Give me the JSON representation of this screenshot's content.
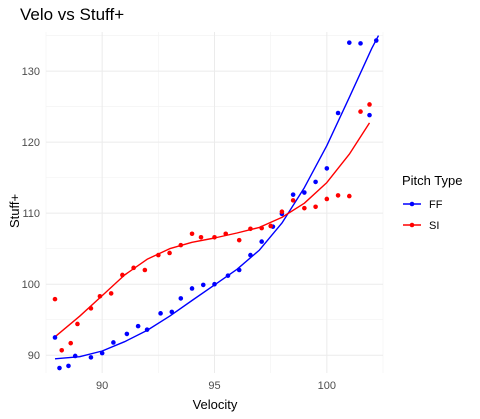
{
  "chart_data": {
    "type": "scatter",
    "title": "Velo vs Stuff+",
    "xlabel": "Velocity",
    "ylabel": "Stuff+",
    "xlim": [
      87.5,
      102.5
    ],
    "ylim": [
      87.5,
      135.5
    ],
    "x_ticks": [
      90,
      95,
      100
    ],
    "y_ticks": [
      90,
      100,
      110,
      120,
      130
    ],
    "grid": true,
    "legend": {
      "title": "Pitch Type",
      "placement": "right"
    },
    "series": [
      {
        "name": "FF",
        "color": "#0000ff",
        "points": [
          [
            87.9,
            92.5
          ],
          [
            88.1,
            88.2
          ],
          [
            88.5,
            88.5
          ],
          [
            88.8,
            89.9
          ],
          [
            89.5,
            89.7
          ],
          [
            90.0,
            90.3
          ],
          [
            90.5,
            91.8
          ],
          [
            91.1,
            93.0
          ],
          [
            91.6,
            94.1
          ],
          [
            92.0,
            93.6
          ],
          [
            92.6,
            95.9
          ],
          [
            93.1,
            96.1
          ],
          [
            93.5,
            98.0
          ],
          [
            94.0,
            99.4
          ],
          [
            94.5,
            99.9
          ],
          [
            95.0,
            100.0
          ],
          [
            95.6,
            101.2
          ],
          [
            96.1,
            102.0
          ],
          [
            96.6,
            104.1
          ],
          [
            97.1,
            106.0
          ],
          [
            97.6,
            108.1
          ],
          [
            98.0,
            109.9
          ],
          [
            98.5,
            112.6
          ],
          [
            99.0,
            112.9
          ],
          [
            99.5,
            114.4
          ],
          [
            100.0,
            116.3
          ],
          [
            100.5,
            124.1
          ],
          [
            101.0,
            134.0
          ],
          [
            101.5,
            133.9
          ],
          [
            101.9,
            123.8
          ],
          [
            102.2,
            134.3
          ]
        ],
        "trend": [
          [
            87.9,
            89.5
          ],
          [
            89.0,
            89.8
          ],
          [
            90.0,
            90.6
          ],
          [
            91.0,
            91.9
          ],
          [
            92.0,
            93.5
          ],
          [
            93.0,
            95.5
          ],
          [
            94.0,
            97.7
          ],
          [
            95.0,
            99.9
          ],
          [
            96.0,
            102.1
          ],
          [
            97.0,
            104.8
          ],
          [
            98.0,
            108.6
          ],
          [
            99.0,
            113.6
          ],
          [
            100.0,
            119.5
          ],
          [
            101.0,
            126.3
          ],
          [
            102.0,
            133.2
          ],
          [
            102.3,
            135.0
          ]
        ]
      },
      {
        "name": "SI",
        "color": "#ff0000",
        "points": [
          [
            87.9,
            97.9
          ],
          [
            88.2,
            90.7
          ],
          [
            88.6,
            91.7
          ],
          [
            88.9,
            94.4
          ],
          [
            89.5,
            96.6
          ],
          [
            89.9,
            98.3
          ],
          [
            90.4,
            98.7
          ],
          [
            90.9,
            101.3
          ],
          [
            91.4,
            102.3
          ],
          [
            91.9,
            102.0
          ],
          [
            92.5,
            104.1
          ],
          [
            93.0,
            104.4
          ],
          [
            93.5,
            105.5
          ],
          [
            94.0,
            107.1
          ],
          [
            94.4,
            106.6
          ],
          [
            95.0,
            106.6
          ],
          [
            95.5,
            107.1
          ],
          [
            96.1,
            106.2
          ],
          [
            96.6,
            107.8
          ],
          [
            97.1,
            107.9
          ],
          [
            97.5,
            108.2
          ],
          [
            98.0,
            110.2
          ],
          [
            98.5,
            111.8
          ],
          [
            99.0,
            110.7
          ],
          [
            99.5,
            110.9
          ],
          [
            100.0,
            112.0
          ],
          [
            100.5,
            112.5
          ],
          [
            101.0,
            112.4
          ],
          [
            101.5,
            124.3
          ],
          [
            101.9,
            125.3
          ]
        ],
        "trend": [
          [
            87.9,
            92.6
          ],
          [
            89.0,
            95.5
          ],
          [
            90.0,
            98.4
          ],
          [
            91.0,
            101.3
          ],
          [
            92.0,
            103.5
          ],
          [
            93.0,
            105.0
          ],
          [
            94.0,
            105.9
          ],
          [
            95.0,
            106.5
          ],
          [
            96.0,
            107.2
          ],
          [
            97.0,
            108.0
          ],
          [
            98.0,
            109.4
          ],
          [
            99.0,
            111.4
          ],
          [
            100.0,
            114.3
          ],
          [
            101.0,
            118.3
          ],
          [
            101.9,
            122.7
          ]
        ]
      }
    ]
  }
}
